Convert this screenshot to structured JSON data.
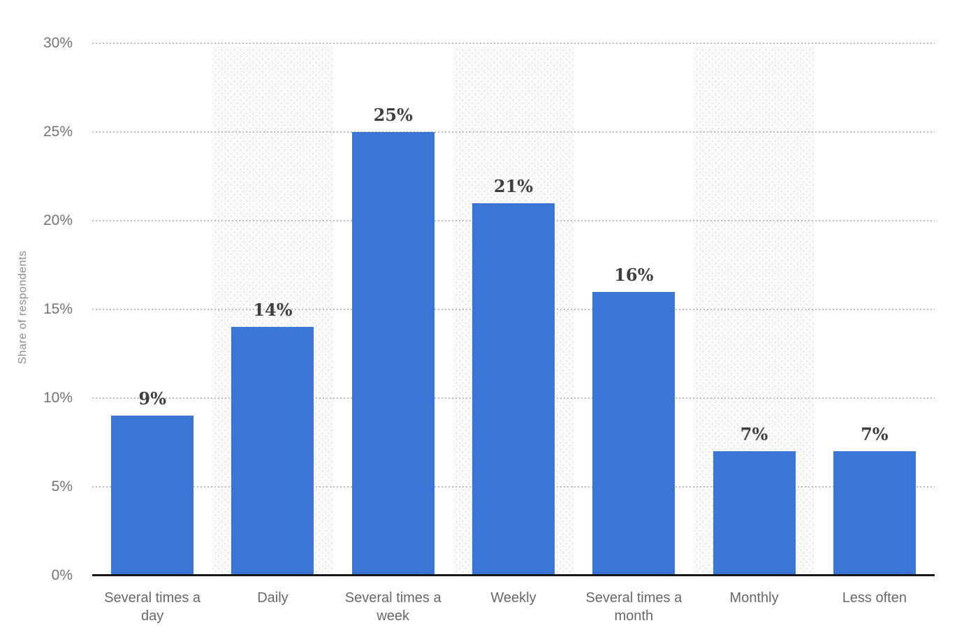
{
  "chart_data": {
    "type": "bar",
    "title": "",
    "xlabel": "",
    "ylabel": "Share of respondents",
    "categories": [
      "Several times a day",
      "Daily",
      "Several times a week",
      "Weekly",
      "Several times a month",
      "Monthly",
      "Less often"
    ],
    "values": [
      9,
      14,
      25,
      21,
      16,
      7,
      7
    ],
    "value_labels": [
      "9%",
      "14%",
      "25%",
      "21%",
      "16%",
      "7%",
      "7%"
    ],
    "y_ticks": [
      {
        "value": 0,
        "label": "0%"
      },
      {
        "value": 5,
        "label": "5%"
      },
      {
        "value": 10,
        "label": "10%"
      },
      {
        "value": 15,
        "label": "15%"
      },
      {
        "value": 20,
        "label": "20%"
      },
      {
        "value": 25,
        "label": "25%"
      },
      {
        "value": 30,
        "label": "30%"
      }
    ],
    "ylim": [
      0,
      30
    ],
    "grid": "horizontal dotted lines every 5%",
    "legend": "none",
    "striped_column_indexes": [
      1,
      3,
      5
    ],
    "colors": {
      "bar": "#3B76D7",
      "value_label": "#3e3e3e",
      "tick_label": "#737373",
      "category_label": "#676767",
      "axis_line": "#161616",
      "gridline": "#bdbdbd",
      "band_background": "#fafafa",
      "band_dots": "#e2e2e2",
      "background": "#ffffff"
    }
  }
}
